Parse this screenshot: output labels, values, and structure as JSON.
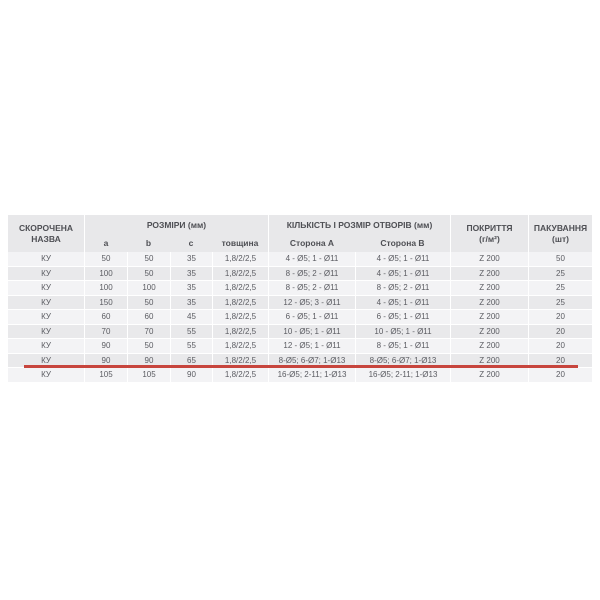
{
  "table": {
    "header": {
      "name_line1": "СКОРОЧЕНА",
      "name_line2": "НАЗВА",
      "group_dimensions": "РОЗМІРИ (мм)",
      "sub_a": "a",
      "sub_b": "b",
      "sub_c": "c",
      "sub_thickness": "товщина",
      "group_holes": "КІЛЬКІСТЬ І РОЗМІР ОТВОРІВ (мм)",
      "sub_side_a": "Сторона А",
      "sub_side_b": "Сторона В",
      "coating_line1": "ПОКРИТТЯ",
      "coating_line2": "(г/м²)",
      "packaging_line1": "ПАКУВАННЯ",
      "packaging_line2": "(шт)"
    },
    "rows": [
      {
        "name": "КУ",
        "a": "50",
        "b": "50",
        "c": "35",
        "thickness": "1,8/2/2,5",
        "side_a": "4 - Ø5; 1 - Ø11",
        "side_b": "4 - Ø5; 1 - Ø11",
        "coating": "Z 200",
        "packaging": "50"
      },
      {
        "name": "КУ",
        "a": "100",
        "b": "50",
        "c": "35",
        "thickness": "1,8/2/2,5",
        "side_a": "8 - Ø5; 2 - Ø11",
        "side_b": "4 - Ø5; 1 - Ø11",
        "coating": "Z 200",
        "packaging": "25"
      },
      {
        "name": "КУ",
        "a": "100",
        "b": "100",
        "c": "35",
        "thickness": "1,8/2/2,5",
        "side_a": "8 - Ø5; 2 - Ø11",
        "side_b": "8 - Ø5; 2 - Ø11",
        "coating": "Z 200",
        "packaging": "25"
      },
      {
        "name": "КУ",
        "a": "150",
        "b": "50",
        "c": "35",
        "thickness": "1,8/2/2,5",
        "side_a": "12 - Ø5; 3 - Ø11",
        "side_b": "4 - Ø5; 1 - Ø11",
        "coating": "Z 200",
        "packaging": "25"
      },
      {
        "name": "КУ",
        "a": "60",
        "b": "60",
        "c": "45",
        "thickness": "1,8/2/2,5",
        "side_a": "6 - Ø5; 1 - Ø11",
        "side_b": "6 - Ø5; 1 - Ø11",
        "coating": "Z 200",
        "packaging": "20"
      },
      {
        "name": "КУ",
        "a": "70",
        "b": "70",
        "c": "55",
        "thickness": "1,8/2/2,5",
        "side_a": "10 - Ø5; 1 - Ø11",
        "side_b": "10 - Ø5; 1 - Ø11",
        "coating": "Z 200",
        "packaging": "20"
      },
      {
        "name": "КУ",
        "a": "90",
        "b": "50",
        "c": "55",
        "thickness": "1,8/2/2,5",
        "side_a": "12 - Ø5; 1 - Ø11",
        "side_b": "8 - Ø5; 1 - Ø11",
        "coating": "Z 200",
        "packaging": "20"
      },
      {
        "name": "КУ",
        "a": "90",
        "b": "90",
        "c": "65",
        "thickness": "1,8/2/2,5",
        "side_a": "8-Ø5; 6-Ø7; 1-Ø13",
        "side_b": "8-Ø5; 6-Ø7; 1-Ø13",
        "coating": "Z 200",
        "packaging": "20",
        "highlighted": true
      },
      {
        "name": "КУ",
        "a": "105",
        "b": "105",
        "c": "90",
        "thickness": "1,8/2/2,5",
        "side_a": "16-Ø5; 2-11; 1-Ø13",
        "side_b": "16-Ø5; 2-11; 1-Ø13",
        "coating": "Z 200",
        "packaging": "20"
      }
    ],
    "colors": {
      "header_bg": "#e8e8ea",
      "row_light": "#f3f3f5",
      "row_dark": "#e9e9eb",
      "header_text": "#4e4f54",
      "data_text": "#5b5c62",
      "highlight_line": "#c7453d"
    }
  }
}
